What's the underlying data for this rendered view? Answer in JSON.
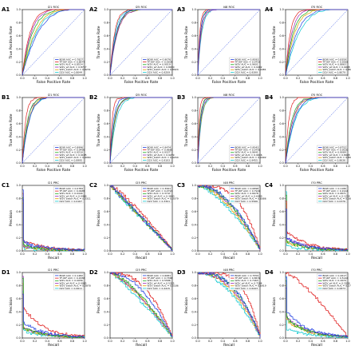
{
  "colors": {
    "BOW": "#1f3fe0",
    "TF-IDF": "#e02020",
    "W2V": "#18a818",
    "W2V_sif": "#9a2ab8",
    "W2V_batch": "#e0a000",
    "D2V": "#10c8d0",
    "diag": "#1f3fe0"
  },
  "chart_data": [
    {
      "id": "A1",
      "label": "A1",
      "type": "line",
      "title": "I21 ROC",
      "xlabel": "False Positive Rate",
      "ylabel": "True Positive Rate",
      "xlim": [
        0,
        1
      ],
      "ylim": [
        0,
        1
      ],
      "curve": "roc",
      "legend_position": "lower-right",
      "series": [
        {
          "name": "BOW AUC = 0.7827",
          "auc": 0.7827
        },
        {
          "name": "TF-IDF AUC = 0.8877",
          "auc": 0.8877
        },
        {
          "name": "W2V AUC = 0.8514",
          "auc": 0.8514
        },
        {
          "name": "W2V_sif AUC = 0.8717",
          "auc": 0.8717
        },
        {
          "name": "W2V_batch AUC = 0.8231",
          "auc": 0.8231
        },
        {
          "name": "D2V AUC = 0.8044",
          "auc": 0.8044
        }
      ]
    },
    {
      "id": "A2",
      "label": "A2",
      "type": "line",
      "title": "I25 ROC",
      "xlabel": "False Positive Rate",
      "ylabel": "True Positive Rate",
      "xlim": [
        0,
        1
      ],
      "ylim": [
        0,
        1
      ],
      "curve": "roc",
      "legend_position": "lower-right",
      "series": [
        {
          "name": "BOW AUC = 0.9076",
          "auc": 0.9076
        },
        {
          "name": "TF-IDF AUC = 0.9309",
          "auc": 0.9309
        },
        {
          "name": "W2V AUC = 0.9019",
          "auc": 0.9019
        },
        {
          "name": "W2V_sif AUC = 0.8930",
          "auc": 0.893
        },
        {
          "name": "W2V_batch AUC = 0.8924",
          "auc": 0.8924
        },
        {
          "name": "D2V AUC = 0.9209",
          "auc": 0.9209
        }
      ]
    },
    {
      "id": "A3",
      "label": "A3",
      "type": "line",
      "title": "I48 ROC",
      "xlabel": "False Positive Rate",
      "ylabel": "True Positive Rate",
      "xlim": [
        0,
        1
      ],
      "ylim": [
        0,
        1
      ],
      "curve": "roc",
      "legend_position": "lower-right",
      "series": [
        {
          "name": "BOW AUC = 0.9593",
          "auc": 0.9593
        },
        {
          "name": "TF-IDF AUC = 0.9703",
          "auc": 0.9703
        },
        {
          "name": "W2V AUC = 0.9601",
          "auc": 0.9601
        },
        {
          "name": "W2V_sif AUC = 0.9492",
          "auc": 0.9492
        },
        {
          "name": "W2V_batch AUC = 0.9481",
          "auc": 0.9481
        },
        {
          "name": "D2V AUC = 0.9399",
          "auc": 0.9399
        }
      ]
    },
    {
      "id": "A4",
      "label": "A4",
      "type": "line",
      "title": "I70 ROC",
      "xlabel": "False Positive Rate",
      "ylabel": "True Positive Rate",
      "xlim": [
        0,
        1
      ],
      "ylim": [
        0,
        1
      ],
      "curve": "roc",
      "legend_position": "lower-right",
      "series": [
        {
          "name": "BOW AUC = 0.8359",
          "auc": 0.8359
        },
        {
          "name": "TF-IDF AUC = 0.9283",
          "auc": 0.9283
        },
        {
          "name": "W2V AUC = 0.8863",
          "auc": 0.8863
        },
        {
          "name": "W2V_sif AUC = 0.9048",
          "auc": 0.9048
        },
        {
          "name": "W2V_batch AUC = 0.8664",
          "auc": 0.8664
        },
        {
          "name": "D2V AUC = 0.8079",
          "auc": 0.8079
        }
      ]
    },
    {
      "id": "B1",
      "label": "B1",
      "type": "line",
      "title": "I21 ROC",
      "xlabel": "False Positive Rate",
      "ylabel": "True Positive Rate",
      "xlim": [
        0,
        1
      ],
      "ylim": [
        0,
        1
      ],
      "curve": "roc",
      "legend_position": "lower-right",
      "series": [
        {
          "name": "BOW AUC = 0.8996",
          "auc": 0.8996
        },
        {
          "name": "TF-IDF AUC = 0.9499",
          "auc": 0.9499
        },
        {
          "name": "W2V AUC = 0.9218",
          "auc": 0.9218
        },
        {
          "name": "W2V_sif AUC = 0.9195",
          "auc": 0.9195
        },
        {
          "name": "W2V_batch AUC = 0.9064",
          "auc": 0.9064
        },
        {
          "name": "D2V AUC = 0.8995",
          "auc": 0.8995
        }
      ]
    },
    {
      "id": "B2",
      "label": "B2",
      "type": "line",
      "title": "I25 ROC",
      "xlabel": "False Positive Rate",
      "ylabel": "True Positive Rate",
      "xlim": [
        0,
        1
      ],
      "ylim": [
        0,
        1
      ],
      "curve": "roc",
      "legend_position": "lower-right",
      "series": [
        {
          "name": "BOW AUC = 0.9474",
          "auc": 0.9474
        },
        {
          "name": "TF-IDF AUC = 0.9680",
          "auc": 0.968
        },
        {
          "name": "W2V AUC = 0.9327",
          "auc": 0.9327
        },
        {
          "name": "W2V_sif AUC = 0.9279",
          "auc": 0.9279
        },
        {
          "name": "W2V_batch AUC = 0.9244",
          "auc": 0.9244
        },
        {
          "name": "D2V AUC = 0.9103",
          "auc": 0.9103
        }
      ]
    },
    {
      "id": "B3",
      "label": "B3",
      "type": "line",
      "title": "I48 ROC",
      "xlabel": "False Positive Rate",
      "ylabel": "True Positive Rate",
      "xlim": [
        0,
        1
      ],
      "ylim": [
        0,
        1
      ],
      "curve": "roc",
      "legend_position": "lower-right",
      "series": [
        {
          "name": "BOW AUC = 0.9543",
          "auc": 0.9543
        },
        {
          "name": "TF-IDF AUC = 0.9791",
          "auc": 0.9791
        },
        {
          "name": "W2V AUC = 0.9641",
          "auc": 0.9641
        },
        {
          "name": "W2V_sif AUC = 0.9616",
          "auc": 0.9616
        },
        {
          "name": "W2V_batch AUC = 0.9492",
          "auc": 0.9492
        },
        {
          "name": "D2V AUC = 0.9455",
          "auc": 0.9455
        }
      ]
    },
    {
      "id": "B4",
      "label": "B4",
      "type": "line",
      "title": "I70 ROC",
      "xlabel": "False Positive Rate",
      "ylabel": "True Positive Rate",
      "xlim": [
        0,
        1
      ],
      "ylim": [
        0,
        1
      ],
      "curve": "roc",
      "legend_position": "lower-right",
      "series": [
        {
          "name": "BOW AUC = 0.8752",
          "auc": 0.8752
        },
        {
          "name": "TF-IDF AUC = 0.9520",
          "auc": 0.952
        },
        {
          "name": "W2V AUC = 0.9089",
          "auc": 0.9089
        },
        {
          "name": "W2V_sif AUC = 0.8948",
          "auc": 0.8948
        },
        {
          "name": "W2V_batch AUC = 0.8916",
          "auc": 0.8916
        },
        {
          "name": "D2V AUC = 0.8636",
          "auc": 0.8636
        }
      ]
    },
    {
      "id": "C1",
      "label": "C1",
      "type": "line",
      "title": "I21 PRC",
      "xlabel": "Recall",
      "ylabel": "Precision",
      "xlim": [
        0,
        1
      ],
      "ylim": [
        0,
        1
      ],
      "curve": "prc",
      "legend_position": "upper-right",
      "series": [
        {
          "name": "BOW AUC = 0.0784",
          "auc": 0.0784
        },
        {
          "name": "TF-IDF AUC = 0.0965",
          "auc": 0.0965
        },
        {
          "name": "W2V AUC = 0.0444",
          "auc": 0.0444
        },
        {
          "name": "W2V_sif AUC = 0.0466",
          "auc": 0.0466
        },
        {
          "name": "W2V_batch AUC = 0.0311",
          "auc": 0.0311
        },
        {
          "name": "D2V AUC = 0.0167",
          "auc": 0.0167
        }
      ]
    },
    {
      "id": "C2",
      "label": "C2",
      "type": "line",
      "title": "I25 PRC",
      "xlabel": "Recall",
      "ylabel": "Precision",
      "xlim": [
        0,
        1
      ],
      "ylim": [
        0,
        1
      ],
      "curve": "prc",
      "legend_position": "upper-right",
      "series": [
        {
          "name": "BOW AUC = 0.3991",
          "auc": 0.3991
        },
        {
          "name": "TF-IDF AUC = 0.4797",
          "auc": 0.4797
        },
        {
          "name": "W2V AUC = 0.3747",
          "auc": 0.3747
        },
        {
          "name": "W2V_sif AUC = 0.3640",
          "auc": 0.364
        },
        {
          "name": "W2V_batch AUC = 0.3579",
          "auc": 0.3579
        },
        {
          "name": "D2V AUC = 0.3301",
          "auc": 0.3301
        }
      ]
    },
    {
      "id": "C3",
      "label": "C3",
      "type": "line",
      "title": "I48 PRC",
      "xlabel": "Recall",
      "ylabel": "Precision",
      "xlim": [
        0,
        1
      ],
      "ylim": [
        0,
        1
      ],
      "curve": "prc",
      "legend_position": "upper-right",
      "series": [
        {
          "name": "BOW AUC = 0.6898",
          "auc": 0.6898
        },
        {
          "name": "TF-IDF AUC = 0.7941",
          "auc": 0.7941
        },
        {
          "name": "W2V AUC = 0.6678",
          "auc": 0.6678
        },
        {
          "name": "W2V_sif AUC = 0.6499",
          "auc": 0.6499
        },
        {
          "name": "W2V_batch AUC = 0.6086",
          "auc": 0.6086
        },
        {
          "name": "D2V AUC = 0.5566",
          "auc": 0.5566
        }
      ]
    },
    {
      "id": "C4",
      "label": "C4",
      "type": "line",
      "title": "I70 PRC",
      "xlabel": "Recall",
      "ylabel": "Precision",
      "xlim": [
        0,
        1
      ],
      "ylim": [
        0,
        1
      ],
      "curve": "prc",
      "legend_position": "upper-right",
      "series": [
        {
          "name": "BOW AUC = 0.1180",
          "auc": 0.118
        },
        {
          "name": "TF-IDF AUC = 0.1914",
          "auc": 0.1914
        },
        {
          "name": "W2V AUC = 0.0871",
          "auc": 0.0871
        },
        {
          "name": "W2V_sif AUC = 0.1214",
          "auc": 0.1214
        },
        {
          "name": "W2V_batch AUC = 0.0825",
          "auc": 0.0825
        },
        {
          "name": "D2V AUC = 0.0376",
          "auc": 0.0376
        }
      ]
    },
    {
      "id": "D1",
      "label": "D1",
      "type": "line",
      "title": "I21 PRC",
      "xlabel": "Recall",
      "ylabel": "Precision",
      "xlim": [
        0,
        1
      ],
      "ylim": [
        0,
        1
      ],
      "curve": "prc",
      "legend_position": "upper-right",
      "series": [
        {
          "name": "BOW AUC = 0.1482",
          "auc": 0.1482
        },
        {
          "name": "TF-IDF AUC = 0.2956",
          "auc": 0.2956
        },
        {
          "name": "W2V AUC = 0.0956",
          "auc": 0.0956
        },
        {
          "name": "W2V_sif AUC = 0.0985",
          "auc": 0.0985
        },
        {
          "name": "W2V_batch AUC = 0.0878",
          "auc": 0.0878
        },
        {
          "name": "D2V AUC = 0.0611",
          "auc": 0.0611
        }
      ]
    },
    {
      "id": "D2",
      "label": "D2",
      "type": "line",
      "title": "I25 PRC",
      "xlabel": "Recall",
      "ylabel": "Precision",
      "xlim": [
        0,
        1
      ],
      "ylim": [
        0,
        1
      ],
      "curve": "prc",
      "legend_position": "upper-right",
      "series": [
        {
          "name": "BOW AUC = 0.6681",
          "auc": 0.6681
        },
        {
          "name": "TF-IDF AUC = 0.7368",
          "auc": 0.7368
        },
        {
          "name": "W2V AUC = 0.5586",
          "auc": 0.5586
        },
        {
          "name": "W2V_sif AUC = 0.5325",
          "auc": 0.5325
        },
        {
          "name": "W2V_batch AUC = 0.5186",
          "auc": 0.5186
        },
        {
          "name": "D2V AUC = 0.4415",
          "auc": 0.4415
        }
      ]
    },
    {
      "id": "D3",
      "label": "D3",
      "type": "line",
      "title": "I48 PRC",
      "xlabel": "Recall",
      "ylabel": "Precision",
      "xlim": [
        0,
        1
      ],
      "ylim": [
        0,
        1
      ],
      "curve": "prc",
      "legend_position": "upper-right",
      "series": [
        {
          "name": "BOW AUC = 0.7559",
          "auc": 0.7559
        },
        {
          "name": "TF-IDF AUC = 0.8672",
          "auc": 0.8672
        },
        {
          "name": "W2V AUC = 0.7463",
          "auc": 0.7463
        },
        {
          "name": "W2V_sif AUC = 0.7184",
          "auc": 0.7184
        },
        {
          "name": "W2V_batch AUC = 0.6919",
          "auc": 0.6919
        },
        {
          "name": "D2V AUC = 0.6443",
          "auc": 0.6443
        }
      ]
    },
    {
      "id": "D4",
      "label": "D4",
      "type": "line",
      "title": "I70 PRC",
      "xlabel": "Recall",
      "ylabel": "Precision",
      "xlim": [
        0,
        1
      ],
      "ylim": [
        0,
        1
      ],
      "curve": "prc",
      "legend_position": "upper-right",
      "series": [
        {
          "name": "BOW AUC = 0.2617",
          "auc": 0.2617
        },
        {
          "name": "TF-IDF AUC = 0.5144",
          "auc": 0.5144
        },
        {
          "name": "W2V AUC = 0.1879",
          "auc": 0.1879
        },
        {
          "name": "W2V_sif AUC = 0.2038",
          "auc": 0.2038
        },
        {
          "name": "W2V_batch AUC = 0.1734",
          "auc": 0.1734
        },
        {
          "name": "D2V AUC = 0.0873",
          "auc": 0.0873
        }
      ]
    }
  ],
  "ticks": [
    "0.0",
    "0.2",
    "0.4",
    "0.6",
    "0.8",
    "1.0"
  ]
}
